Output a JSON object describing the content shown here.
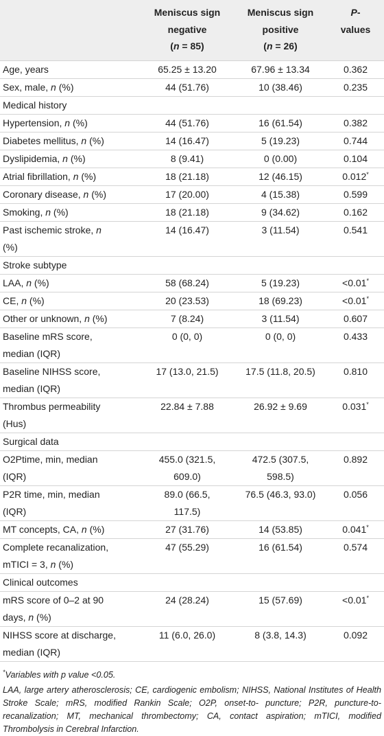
{
  "table": {
    "header": [
      [
        "Meniscus sign",
        "negative",
        "(n = 85)"
      ],
      [
        "Meniscus sign",
        "positive",
        "(n = 26)"
      ],
      [
        "P-",
        "values"
      ]
    ],
    "rows": [
      [
        "Age, years",
        "65.25 ± 13.20",
        "67.96 ± 13.34",
        "0.362"
      ],
      [
        "Sex, male, n (%)",
        "44 (51.76)",
        "10 (38.46)",
        "0.235"
      ],
      [
        "Medical history"
      ],
      [
        "Hypertension, n (%)",
        "44 (51.76)",
        "16 (61.54)",
        "0.382"
      ],
      [
        "Diabetes mellitus, n (%)",
        "14 (16.47)",
        "5 (19.23)",
        "0.744"
      ],
      [
        "Dyslipidemia, n (%)",
        "8 (9.41)",
        "0 (0.00)",
        "0.104"
      ],
      [
        "Atrial fibrillation, n (%)",
        "18 (21.18)",
        "12 (46.15)",
        "0.012*"
      ],
      [
        "Coronary disease, n (%)",
        "17 (20.00)",
        "4 (15.38)",
        "0.599"
      ],
      [
        "Smoking, n (%)",
        "18 (21.18)",
        "9 (34.62)",
        "0.162"
      ],
      [
        [
          "Past ischemic stroke, n",
          "(%)"
        ],
        "14 (16.47)",
        "3 (11.54)",
        "0.541"
      ],
      [
        "Stroke subtype"
      ],
      [
        "LAA, n (%)",
        "58 (68.24)",
        "5 (19.23)",
        "<0.01*"
      ],
      [
        "CE, n (%)",
        "20 (23.53)",
        "18 (69.23)",
        "<0.01*"
      ],
      [
        "Other or unknown, n (%)",
        "7 (8.24)",
        "3 (11.54)",
        "0.607"
      ],
      [
        [
          "Baseline mRS score,",
          "median (IQR)"
        ],
        "0 (0, 0)",
        "0 (0, 0)",
        "0.433"
      ],
      [
        [
          "Baseline NIHSS score,",
          "median (IQR)"
        ],
        "17 (13.0, 21.5)",
        "17.5 (11.8, 20.5)",
        "0.810"
      ],
      [
        [
          "Thrombus permeability",
          "(Hus)"
        ],
        "22.84 ± 7.88",
        "26.92 ± 9.69",
        "0.031*"
      ],
      [
        "Surgical data"
      ],
      [
        [
          "O2Ptime, min, median",
          "(IQR)"
        ],
        [
          "455.0 (321.5,",
          "609.0)"
        ],
        [
          "472.5 (307.5,",
          "598.5)"
        ],
        "0.892"
      ],
      [
        [
          "P2R time, min, median",
          "(IQR)"
        ],
        [
          "89.0 (66.5,",
          "117.5)"
        ],
        "76.5 (46.3, 93.0)",
        "0.056"
      ],
      [
        "MT concepts, CA, n (%)",
        "27 (31.76)",
        "14 (53.85)",
        "0.041*"
      ],
      [
        [
          "Complete recanalization,",
          "mTICI = 3, n (%)"
        ],
        "47 (55.29)",
        "16 (61.54)",
        "0.574"
      ],
      [
        "Clinical outcomes"
      ],
      [
        [
          "mRS score of 0–2 at 90",
          "days, n (%)"
        ],
        "24 (28.24)",
        "15 (57.69)",
        "<0.01*"
      ],
      [
        [
          "NIHSS score at discharge,",
          "median (IQR)"
        ],
        "11 (6.0, 26.0)",
        "8 (3.8, 14.3)",
        "0.092"
      ]
    ],
    "footnotes": [
      "*Variables with p value <0.05.",
      "LAA, large artery atherosclerosis; CE, cardiogenic embolism; NIHSS, National Institutes of Health Stroke Scale; mRS, modified Rankin Scale; O2P, onset-to- puncture; P2R, puncture-to-recanalization; MT, mechanical thrombectomy; CA, contact aspiration; mTICI, modified Thrombolysis in Cerebral Infarction."
    ]
  }
}
